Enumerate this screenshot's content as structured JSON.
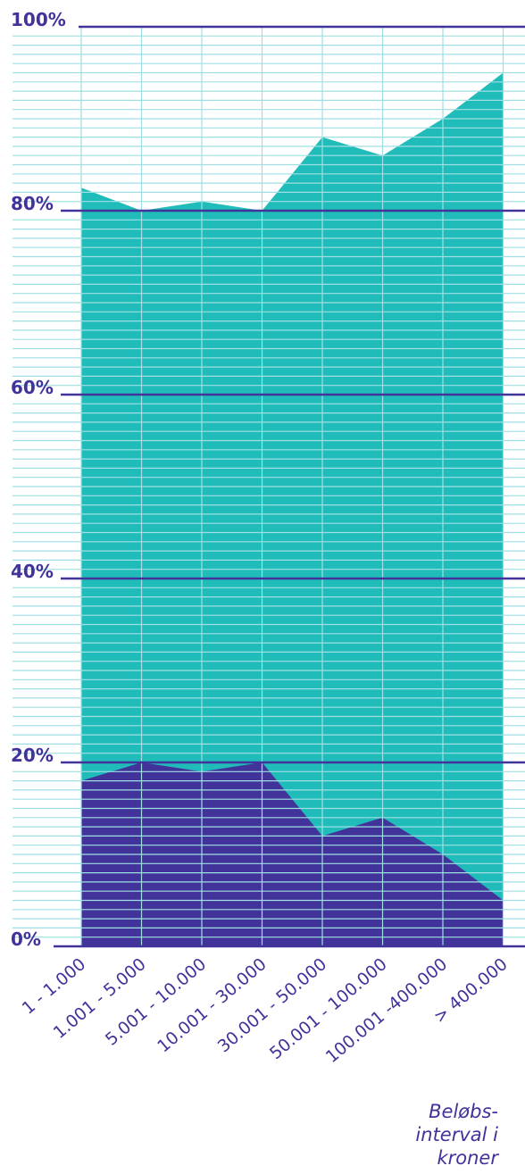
{
  "chart_data": {
    "type": "area",
    "stacked": true,
    "categories": [
      "1 - 1.000",
      "1.001 - 5.000",
      "5.001 - 10.000",
      "10.001 - 30.000",
      "30.001 - 50.000",
      "50.001 - 100.000",
      "100.001 -400.000",
      "> 400.000"
    ],
    "series": [
      {
        "values": [
          18,
          20,
          19,
          20,
          12,
          14,
          10,
          5
        ],
        "color": "#41339a"
      },
      {
        "values": [
          64.5,
          60,
          62,
          60,
          76,
          72,
          80,
          90
        ],
        "color": "#20bcb9"
      }
    ],
    "y_tick_labels": [
      "0%",
      "20%",
      "40%",
      "60%",
      "80%",
      "100%"
    ],
    "ylim": [
      0,
      100
    ],
    "xlabel": "Beløbs- interval i kroner",
    "xlabel_lines": [
      "Beløbs-",
      "interval i",
      "kroner"
    ],
    "grid": true,
    "colors": {
      "major_line": "#41339a",
      "minor_line": "#9fdfe3",
      "text": "#41339a"
    }
  }
}
